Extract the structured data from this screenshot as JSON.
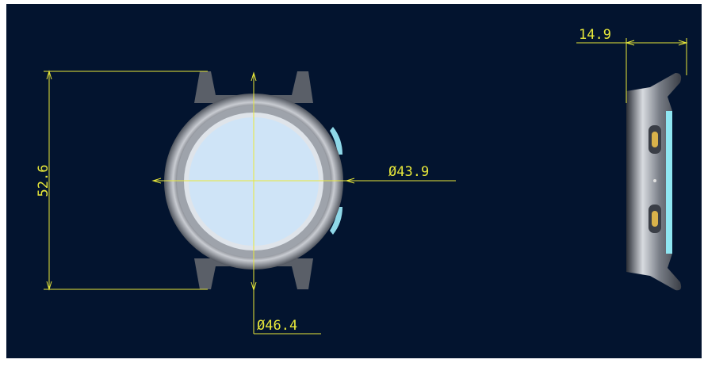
{
  "dimensions": {
    "height": "52.6",
    "inner_diameter": "Ø43.9",
    "outer_diameter": "Ø46.4",
    "thickness": "14.9"
  }
}
